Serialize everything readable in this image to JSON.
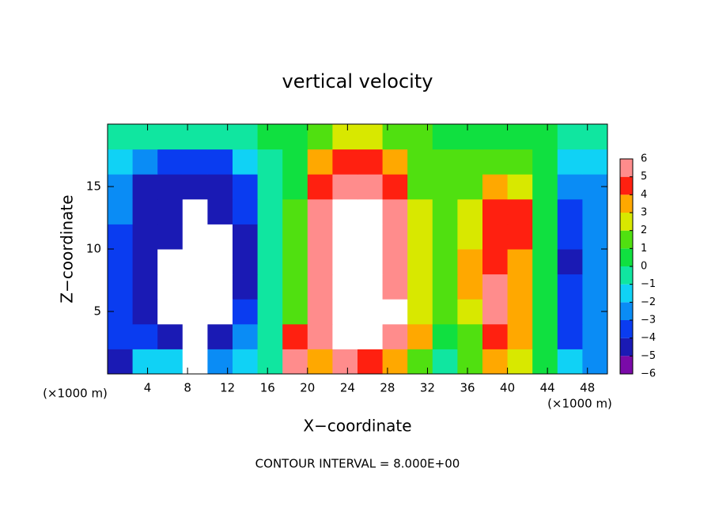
{
  "chart_data": {
    "type": "heatmap",
    "title": "vertical velocity",
    "xlabel": "X−coordinate",
    "ylabel": "Z−coordinate",
    "x_unit_label": "(×1000 m)",
    "footnote": "CONTOUR INTERVAL = 8.000E+00",
    "xlim": [
      0,
      50
    ],
    "ylim": [
      0,
      20
    ],
    "xticks": [
      4,
      8,
      12,
      16,
      20,
      24,
      28,
      32,
      36,
      40,
      44,
      48
    ],
    "yticks": [
      5,
      10,
      15
    ],
    "x": [
      1.25,
      3.75,
      6.25,
      8.75,
      11.25,
      13.75,
      16.25,
      18.75,
      21.25,
      23.75,
      26.25,
      28.75,
      31.25,
      33.75,
      36.25,
      38.75,
      41.25,
      43.75,
      46.25,
      48.75
    ],
    "y": [
      1,
      3,
      5,
      7,
      9,
      11,
      13,
      15,
      17,
      19
    ],
    "z": [
      [
        -5,
        -2,
        -2,
        -8,
        -3,
        -2,
        -1,
        5,
        3,
        5,
        4,
        3,
        1,
        -1,
        1,
        3,
        2,
        0,
        -2,
        -3
      ],
      [
        -4,
        -4,
        -5,
        -8,
        -5,
        -3,
        -1,
        4,
        5,
        8,
        8,
        6,
        3,
        0,
        1,
        4,
        3,
        0,
        -4,
        -3
      ],
      [
        -4,
        -5,
        -8,
        -8,
        -8,
        -4,
        -1,
        1,
        6,
        8,
        8,
        7,
        2,
        1,
        2,
        5,
        3,
        0,
        -4,
        -3
      ],
      [
        -4,
        -5,
        -8,
        -8,
        -8,
        -5,
        -1,
        1,
        6,
        8,
        8,
        6,
        2,
        1,
        3,
        5,
        3,
        0,
        -4,
        -3
      ],
      [
        -4,
        -5,
        -8,
        -8,
        -8,
        -5,
        -1,
        1,
        6,
        8,
        8,
        6,
        2,
        1,
        3,
        4,
        3,
        0,
        -5,
        -3
      ],
      [
        -4,
        -5,
        -5,
        -8,
        -8,
        -5,
        -1,
        1,
        6,
        8,
        8,
        6,
        2,
        1,
        2,
        4,
        4,
        0,
        -4,
        -3
      ],
      [
        -3,
        -5,
        -5,
        -8,
        -5,
        -4,
        -1,
        1,
        5,
        7,
        8,
        5,
        2,
        1,
        2,
        4,
        4,
        0,
        -4,
        -3
      ],
      [
        -3,
        -5,
        -5,
        -5,
        -5,
        -4,
        -1,
        0,
        4,
        5,
        5,
        4,
        1,
        1,
        1,
        3,
        2,
        0,
        -3,
        -3
      ],
      [
        -2,
        -3,
        -4,
        -4,
        -4,
        -2,
        -1,
        0,
        3,
        4,
        4,
        3,
        1,
        1,
        1,
        1,
        1,
        0,
        -2,
        -2
      ],
      [
        -1,
        -1,
        -1,
        -1,
        -1,
        -1,
        0,
        0,
        1,
        2,
        2,
        1,
        1,
        0,
        0,
        0,
        0,
        0,
        -1,
        -1
      ]
    ],
    "colorbar_ticks": [
      {
        "value": -6,
        "label": "−6"
      },
      {
        "value": -5,
        "label": "−5"
      },
      {
        "value": -4,
        "label": "−4"
      },
      {
        "value": -3,
        "label": "−3"
      },
      {
        "value": -2,
        "label": "−2"
      },
      {
        "value": -1,
        "label": "−1"
      },
      0,
      1,
      2,
      3,
      4,
      5,
      6
    ],
    "colors": [
      "#7a0aa8",
      "#1a1ab4",
      "#0a3cf0",
      "#0a8cf5",
      "#10d2f5",
      "#10e6a0",
      "#10e040",
      "#50e010",
      "#d8e800",
      "#ffa800",
      "#ff2010",
      "#ff8c8c"
    ],
    "out_of_range_color": "#ffffff"
  }
}
